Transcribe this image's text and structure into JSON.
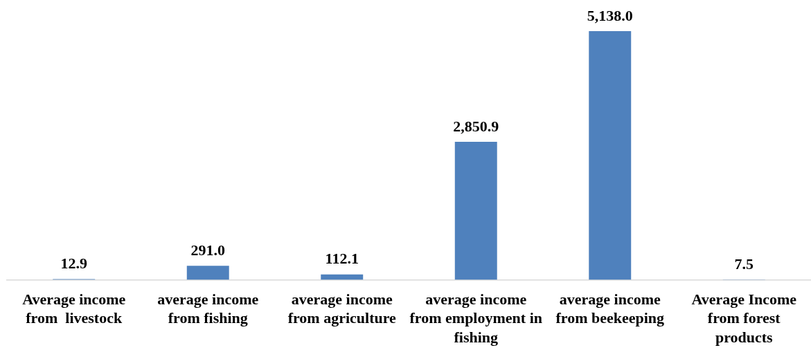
{
  "chart_data": {
    "type": "bar",
    "categories": [
      "Average income from  livestock",
      "average income from fishing",
      "average income from agriculture",
      "average income from employment in fishing",
      "average income from beekeeping",
      "Average Income from forest products"
    ],
    "values": [
      12.9,
      291.0,
      112.1,
      2850.9,
      5138.0,
      7.5
    ],
    "value_labels": [
      "12.9",
      "291.0",
      "112.1",
      "2,850.9",
      "5,138.0",
      "7.5"
    ],
    "color": "#4f81bd",
    "grid": false,
    "legend": false
  }
}
